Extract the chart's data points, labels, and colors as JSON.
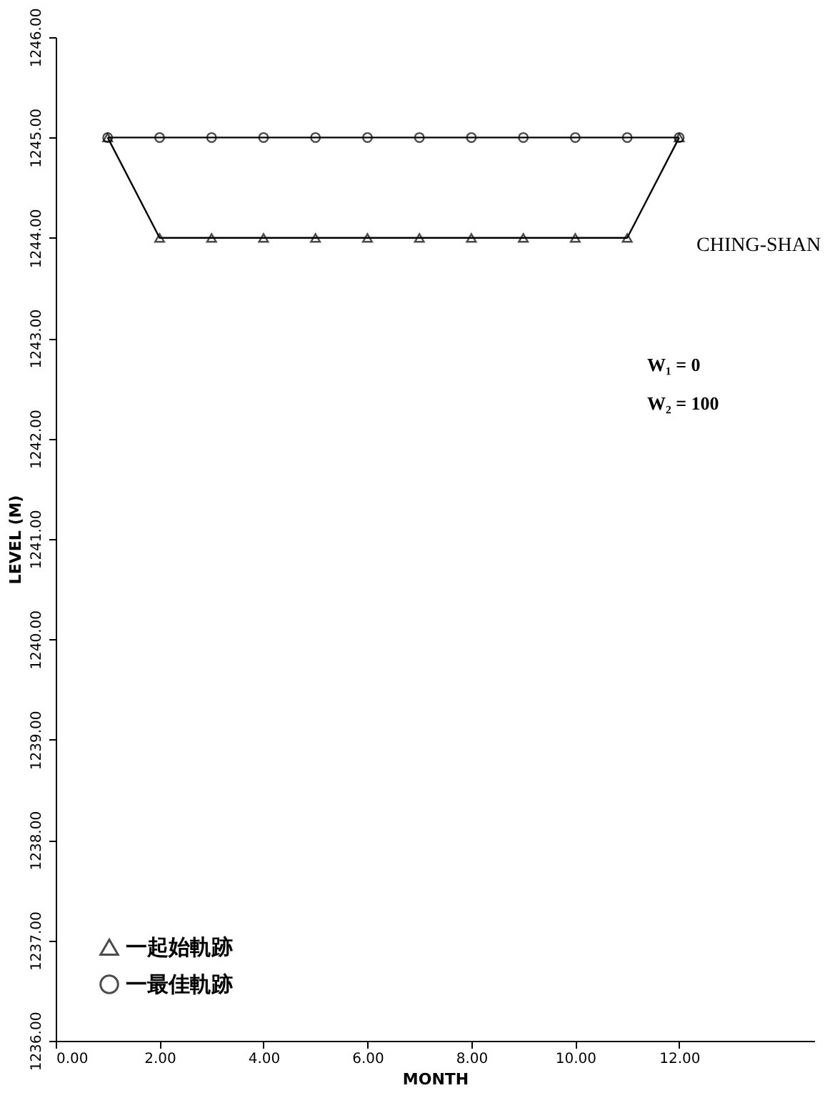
{
  "chart_data": {
    "type": "line",
    "xlabel": "MONTH",
    "ylabel": "LEVEL (M)",
    "xlim": [
      0,
      14.6
    ],
    "ylim": [
      1236,
      1246
    ],
    "xticks": [
      {
        "value": 0,
        "label": "0.00"
      },
      {
        "value": 2,
        "label": "2.00"
      },
      {
        "value": 4,
        "label": "4.00"
      },
      {
        "value": 6,
        "label": "6.00"
      },
      {
        "value": 8,
        "label": "8.00"
      },
      {
        "value": 10,
        "label": "10.00"
      },
      {
        "value": 12,
        "label": "12.00"
      }
    ],
    "yticks": [
      {
        "value": 1236,
        "label": "1236.00"
      },
      {
        "value": 1237,
        "label": "1237.00"
      },
      {
        "value": 1238,
        "label": "1238.00"
      },
      {
        "value": 1239,
        "label": "1239.00"
      },
      {
        "value": 1240,
        "label": "1240.00"
      },
      {
        "value": 1241,
        "label": "1241.00"
      },
      {
        "value": 1242,
        "label": "1242.00"
      },
      {
        "value": 1243,
        "label": "1243.00"
      },
      {
        "value": 1244,
        "label": "1244.00"
      },
      {
        "value": 1245,
        "label": "1245.00"
      },
      {
        "value": 1246,
        "label": "1246.00"
      }
    ],
    "x": [
      1,
      2,
      3,
      4,
      5,
      6,
      7,
      8,
      9,
      10,
      11,
      12
    ],
    "series": [
      {
        "name": "一起始軌跡",
        "color": "#000000",
        "marker": "triangle",
        "values": [
          1245,
          1244,
          1244,
          1244,
          1244,
          1244,
          1244,
          1244,
          1244,
          1244,
          1244,
          1245
        ]
      },
      {
        "name": "一最佳軌跡",
        "color": "#000000",
        "marker": "circle",
        "values": [
          1245,
          1245,
          1245,
          1245,
          1245,
          1245,
          1245,
          1245,
          1245,
          1245,
          1245,
          1245
        ]
      }
    ],
    "annotations": [
      "CHING-SHAN",
      "W₁ = 0",
      "W₂ = 100"
    ],
    "legend": "bottom left",
    "grid": false
  }
}
